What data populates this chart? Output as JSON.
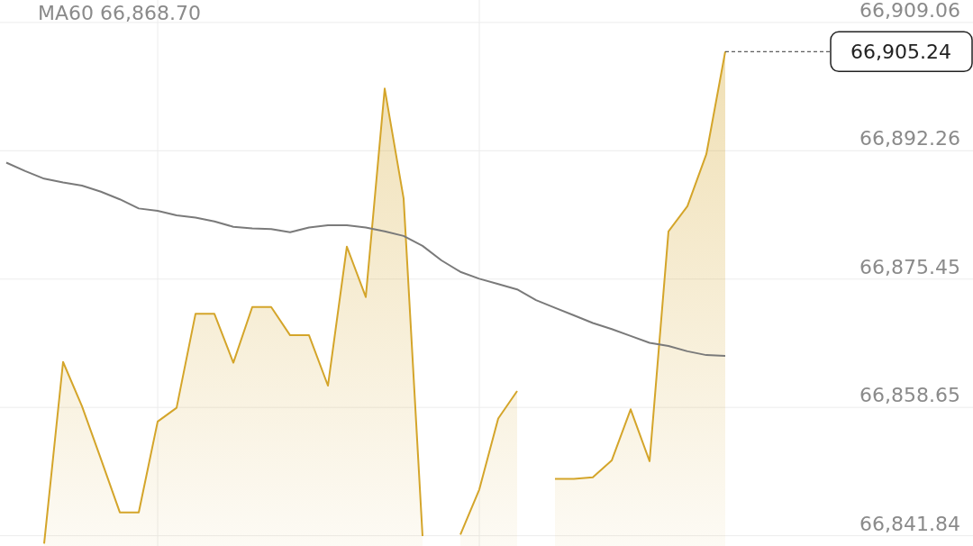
{
  "chart_data": {
    "type": "area",
    "annotations": [
      "MA60 66,868.70"
    ],
    "categories": [
      null,
      null,
      null,
      null,
      null,
      null,
      null,
      null,
      null,
      null,
      null,
      null,
      null,
      null,
      null,
      null,
      null,
      null,
      null,
      null,
      null,
      null,
      null,
      null,
      null,
      null,
      null,
      null,
      null,
      null,
      null,
      null,
      null,
      null,
      null,
      null,
      null,
      null,
      null
    ],
    "series": [
      {
        "color": "#d4a52a",
        "values": [
          null,
          null,
          66840.8,
          66864.6,
          66858.8,
          66851.9,
          66844.9,
          66844.9,
          66856.8,
          66858.6,
          66870.9,
          66870.9,
          66864.5,
          66871.8,
          66871.8,
          66868.1,
          66868.1,
          66861.5,
          66879.7,
          66873.1,
          66900.4,
          66886.0,
          66841.8,
          null,
          66842.0,
          66847.9,
          66857.2,
          66860.8,
          null,
          66849.3,
          66849.3,
          66849.5,
          66851.7,
          66858.4,
          66851.6,
          66881.7,
          66885.0,
          66891.8,
          66905.24
        ]
      },
      {
        "type": "line",
        "color": "#7a7a7a",
        "values": [
          66890.7,
          66889.6,
          66888.6,
          66888.1,
          66887.7,
          66886.9,
          66885.9,
          66884.7,
          66884.4,
          66883.8,
          66883.5,
          66883.0,
          66882.3,
          66882.1,
          66882.0,
          66881.6,
          66882.2,
          66882.5,
          66882.5,
          66882.2,
          66881.7,
          66881.1,
          66879.8,
          66877.9,
          66876.4,
          66875.5,
          66874.8,
          66874.1,
          66872.7,
          66871.7,
          66870.7,
          66869.7,
          66868.9,
          66868.0,
          66867.1,
          66866.7,
          66866.0,
          66865.5,
          66865.4
        ]
      }
    ],
    "ylim": [
      66840.5,
      66912.0
    ],
    "yticks": [
      {
        "value": 66909.06,
        "label": "66,909.06"
      },
      {
        "value": 66892.26,
        "label": "66,892.26"
      },
      {
        "value": 66875.45,
        "label": "66,875.45"
      },
      {
        "value": 66858.65,
        "label": "66,858.65"
      },
      {
        "value": 66841.84,
        "label": "66,841.84"
      }
    ],
    "ref_lines": [
      {
        "axis": "y",
        "value": 66905.24,
        "label": "66,905.24",
        "line_style": "dashed"
      }
    ],
    "grid": true,
    "marker": "none"
  }
}
